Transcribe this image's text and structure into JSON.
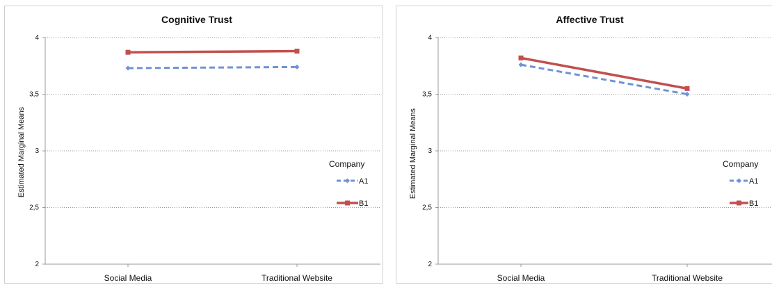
{
  "colors": {
    "series_a": "#6f93d3",
    "series_b": "#c0504d",
    "grid": "#9a9a9a",
    "axis": "#9a9a9a"
  },
  "chart_data": [
    {
      "type": "line",
      "title": "Cognitive Trust",
      "xlabel": "",
      "ylabel": "Estimated Marginal Means",
      "categories": [
        "Social Media",
        "Traditional Website"
      ],
      "ylim": [
        2,
        4
      ],
      "yticks": [
        "2",
        "2,5",
        "3",
        "3,5",
        "4"
      ],
      "grid": true,
      "legend": {
        "title": "Company",
        "position": "right"
      },
      "series": [
        {
          "name": "A1",
          "values": [
            3.73,
            3.74
          ],
          "style": "dashed",
          "marker": "diamond",
          "color": "#6f93d3"
        },
        {
          "name": "B1",
          "values": [
            3.87,
            3.88
          ],
          "style": "solid",
          "marker": "square",
          "color": "#c0504d"
        }
      ]
    },
    {
      "type": "line",
      "title": "Affective Trust",
      "xlabel": "",
      "ylabel": "Estimated Marginal Means",
      "categories": [
        "Social Media",
        "Traditional Website"
      ],
      "ylim": [
        2,
        4
      ],
      "yticks": [
        "2",
        "2,5",
        "3",
        "3,5",
        "4"
      ],
      "grid": true,
      "legend": {
        "title": "Company",
        "position": "right"
      },
      "series": [
        {
          "name": "A1",
          "values": [
            3.76,
            3.5
          ],
          "style": "dashed",
          "marker": "diamond",
          "color": "#6f93d3"
        },
        {
          "name": "B1",
          "values": [
            3.82,
            3.55
          ],
          "style": "solid",
          "marker": "square",
          "color": "#c0504d"
        }
      ]
    }
  ]
}
